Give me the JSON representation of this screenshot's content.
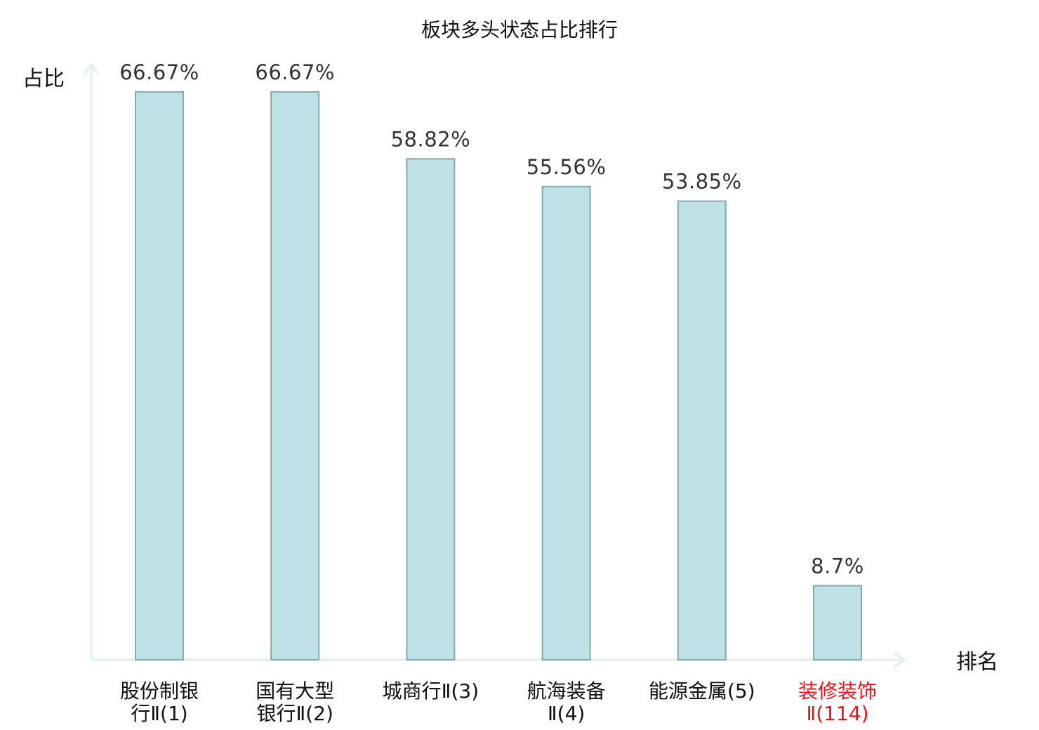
{
  "chart_data": {
    "type": "bar",
    "title": "板块多头状态占比排行",
    "xlabel": "排名",
    "ylabel": "占比",
    "categories": [
      {
        "line1": "股份制银",
        "line2": "行Ⅱ(1)"
      },
      {
        "line1": "国有大型",
        "line2": "银行Ⅱ(2)"
      },
      {
        "line1": "城商行Ⅱ(3)",
        "line2": ""
      },
      {
        "line1": "航海装备",
        "line2": "Ⅱ(4)"
      },
      {
        "line1": "能源金属(5)",
        "line2": ""
      },
      {
        "line1": "装修装饰",
        "line2": "Ⅱ(114)"
      }
    ],
    "values": [
      66.67,
      66.67,
      58.82,
      55.56,
      53.85,
      8.7
    ],
    "value_labels": [
      "66.67%",
      "66.67%",
      "58.82%",
      "55.56%",
      "53.85%",
      "8.7%"
    ],
    "highlight_index": 5,
    "ylim": [
      0,
      66.67
    ],
    "grid": false,
    "colors": {
      "bar_fill": "#bde1e4",
      "bar_stroke": "#8aa8aa",
      "axis": "#dff0ee",
      "label_normal": "#111111",
      "label_highlight": "#e8141b"
    }
  }
}
